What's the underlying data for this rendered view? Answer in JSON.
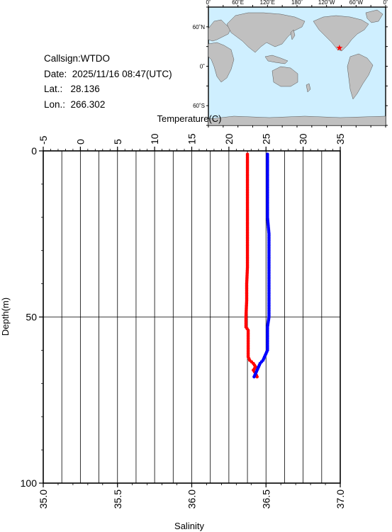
{
  "info": {
    "callsign": "Callsign:WTDO",
    "date": "Date:  2025/11/16 08:47(UTC)",
    "lat": "Lat.:   28.136",
    "lon": "Lon.:  266.302"
  },
  "map": {
    "lon_labels": [
      "0˚",
      "60˚E",
      "120˚E",
      "180˚",
      "120˚W",
      "60˚W",
      "0˚"
    ],
    "lat_labels": [
      "60˚N",
      "0˚",
      "60˚S"
    ],
    "ocean_color": "#cfefff",
    "land_color": "#c0c0c0",
    "station_marker": "star",
    "station_color": "#ff0000",
    "station_lat": 28.136,
    "station_lon": 266.302
  },
  "chart_data": {
    "type": "scatter",
    "top_axis": {
      "label": "Temperature(C)",
      "range": [
        -5,
        35
      ],
      "ticks": [
        "-5",
        "0",
        "5",
        "10",
        "15",
        "20",
        "25",
        "30",
        "35"
      ]
    },
    "bottom_axis": {
      "label": "Salinity",
      "range": [
        35.0,
        37.0
      ],
      "ticks": [
        "35.0",
        "35.5",
        "36.0",
        "36.5",
        "37.0"
      ]
    },
    "y_axis": {
      "label": "Depth(m)",
      "range": [
        0,
        100
      ],
      "inverted": true,
      "ticks": [
        "0",
        "50",
        "100"
      ]
    },
    "grid": true,
    "series": [
      {
        "variable": "temperature",
        "axis": "top",
        "color": "#ff0000",
        "depth": [
          1,
          5,
          10,
          15,
          20,
          25,
          30,
          35,
          40,
          45,
          50,
          53,
          54,
          56,
          58,
          60,
          61,
          62,
          63,
          64,
          65,
          66,
          67,
          68
        ],
        "values": [
          22.5,
          22.5,
          22.5,
          22.5,
          22.5,
          22.5,
          22.5,
          22.5,
          22.4,
          22.4,
          22.3,
          22.3,
          22.6,
          22.6,
          22.6,
          22.6,
          22.6,
          22.6,
          22.8,
          23.3,
          23.6,
          23.3,
          23.6,
          23.8
        ]
      },
      {
        "variable": "salinity",
        "axis": "bottom",
        "color": "#0000ff",
        "depth": [
          1,
          5,
          10,
          15,
          20,
          25,
          30,
          35,
          40,
          45,
          50,
          53,
          55,
          58,
          60,
          61,
          62,
          63,
          64,
          65,
          66,
          67,
          68
        ],
        "values": [
          36.51,
          36.51,
          36.51,
          36.51,
          36.51,
          36.52,
          36.52,
          36.52,
          36.52,
          36.52,
          36.52,
          36.51,
          36.51,
          36.51,
          36.51,
          36.5,
          36.49,
          36.48,
          36.46,
          36.45,
          36.44,
          36.43,
          36.42
        ]
      }
    ]
  }
}
